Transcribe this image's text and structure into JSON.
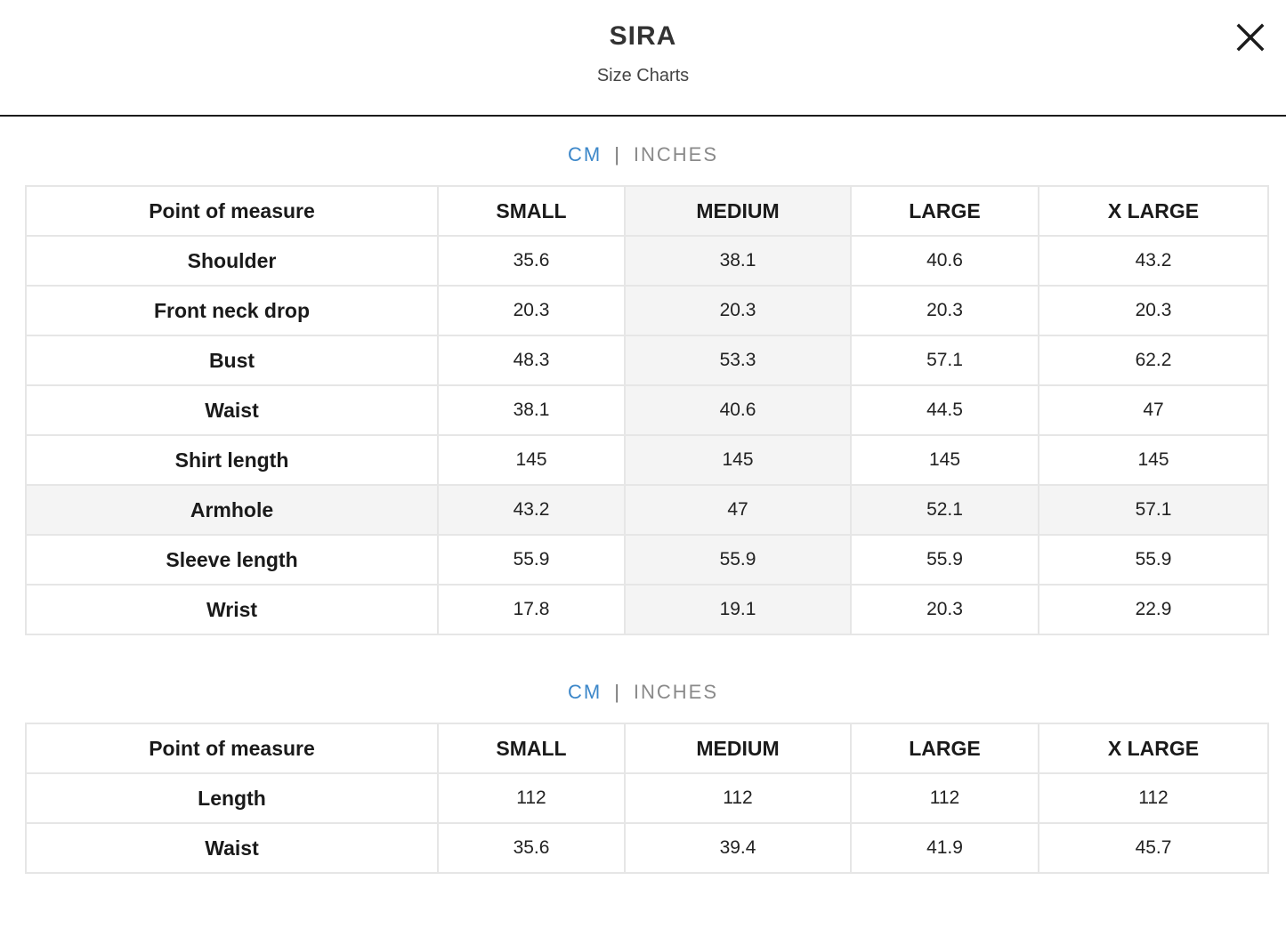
{
  "header": {
    "title": "SIRA",
    "subtitle": "Size Charts",
    "close_label": "X"
  },
  "unit_toggle": {
    "cm": "CM",
    "separator": "|",
    "inches": "INCHES"
  },
  "tables": [
    {
      "columns": [
        "Point of measure",
        "SMALL",
        "MEDIUM",
        "LARGE",
        "X LARGE"
      ],
      "rows": [
        [
          "Shoulder",
          "35.6",
          "38.1",
          "40.6",
          "43.2"
        ],
        [
          "Front neck drop",
          "20.3",
          "20.3",
          "20.3",
          "20.3"
        ],
        [
          "Bust",
          "48.3",
          "53.3",
          "57.1",
          "62.2"
        ],
        [
          "Waist",
          "38.1",
          "40.6",
          "44.5",
          "47"
        ],
        [
          "Shirt length",
          "145",
          "145",
          "145",
          "145"
        ],
        [
          "Armhole",
          "43.2",
          "47",
          "52.1",
          "57.1"
        ],
        [
          "Sleeve length",
          "55.9",
          "55.9",
          "55.9",
          "55.9"
        ],
        [
          "Wrist",
          "17.8",
          "19.1",
          "20.3",
          "22.9"
        ]
      ]
    },
    {
      "columns": [
        "Point of measure",
        "SMALL",
        "MEDIUM",
        "LARGE",
        "X LARGE"
      ],
      "rows": [
        [
          "Length",
          "112",
          "112",
          "112",
          "112"
        ],
        [
          "Waist",
          "35.6",
          "39.4",
          "41.9",
          "45.7"
        ]
      ]
    }
  ],
  "colors": {
    "accent": "#3c87c9",
    "border": "#e6e6e6",
    "highlight": "#f4f4f4"
  }
}
